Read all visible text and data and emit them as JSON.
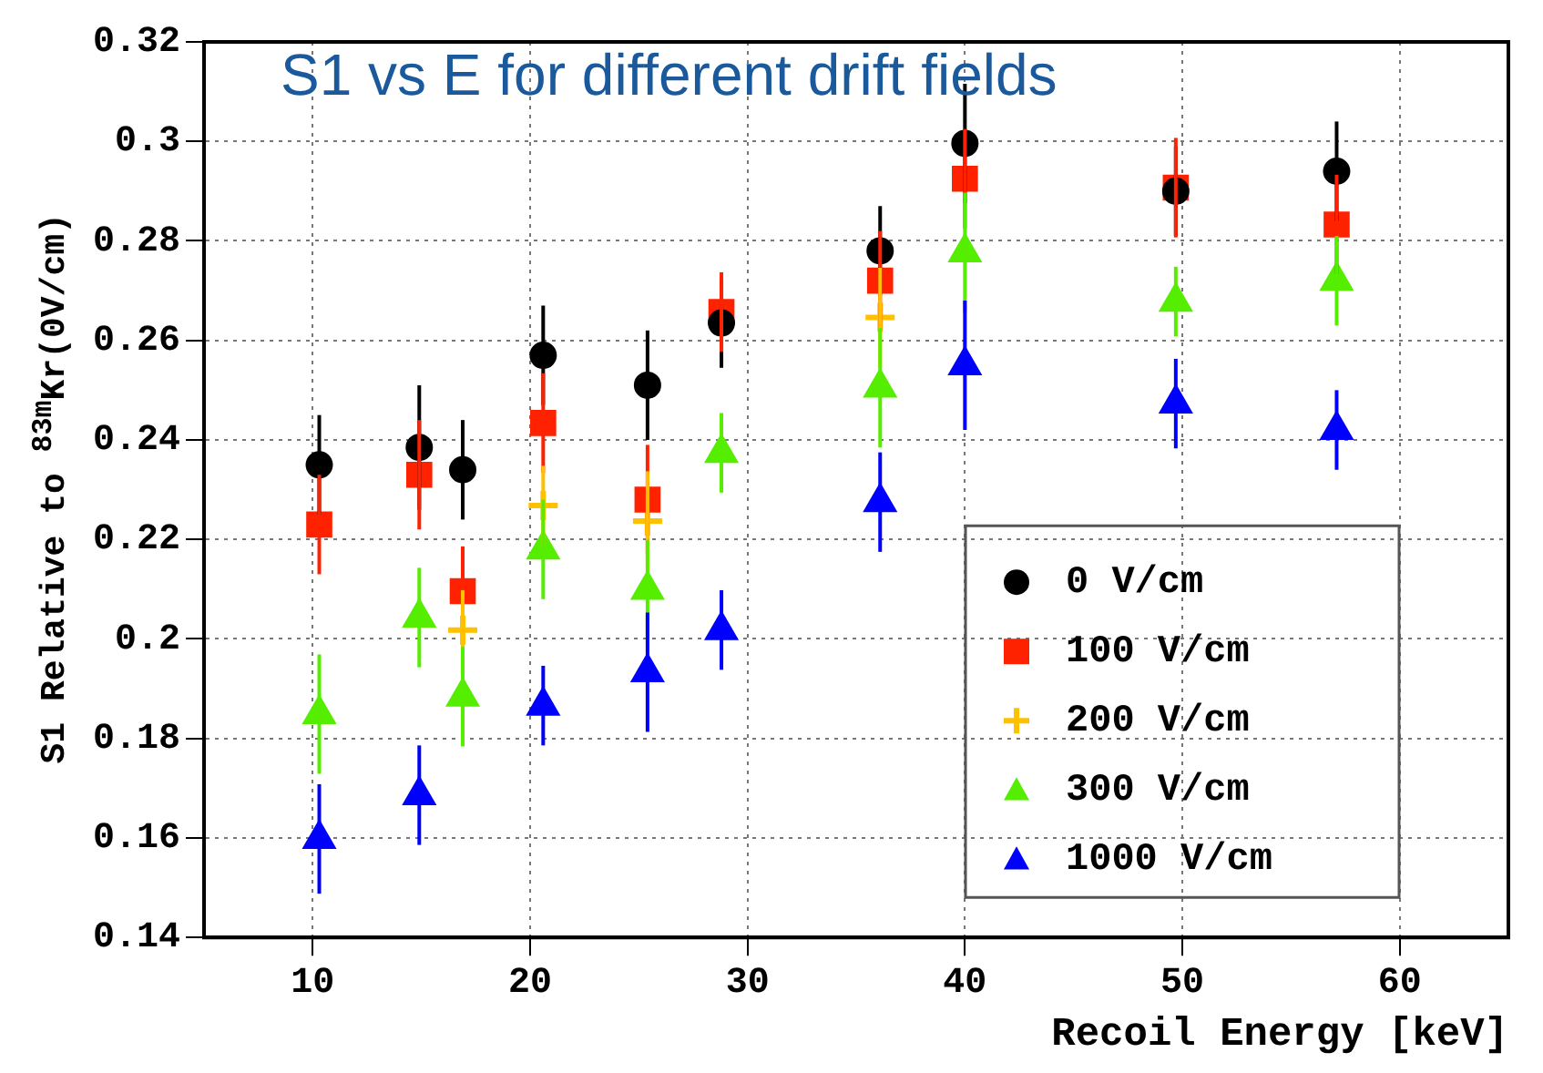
{
  "chart_data": {
    "type": "scatter",
    "title": "S1 vs E for different drift fields",
    "xlabel": "Recoil Energy [keV]",
    "ylabel": "S1 Relative to $^{83m}$Kr(0V/cm)",
    "x": [
      10.3,
      14.9,
      16.9,
      20.6,
      25.4,
      28.8,
      36.1,
      40.0,
      49.7,
      57.1
    ],
    "series": [
      {
        "name": "0 V/cm",
        "color": "#000000",
        "marker": "circle",
        "values": [
          0.235,
          0.2385,
          0.234,
          0.257,
          0.251,
          0.2635,
          0.278,
          0.2996,
          0.29,
          0.294
        ],
        "errors": [
          0.01,
          0.0125,
          0.01,
          0.01,
          0.011,
          0.009,
          0.009,
          0.012,
          0.009,
          0.01
        ]
      },
      {
        "name": "100 V/cm",
        "color": "#ff2200",
        "marker": "square",
        "values": [
          0.223,
          0.233,
          0.2096,
          0.2434,
          0.228,
          0.2657,
          0.272,
          0.2925,
          0.2907,
          0.2833
        ],
        "errors": [
          0.01,
          0.011,
          0.009,
          0.01,
          0.011,
          0.008,
          0.01,
          0.01,
          0.01,
          0.01
        ]
      },
      {
        "name": "200 V/cm",
        "color": "#ffc000",
        "marker": "cross",
        "values": [
          null,
          null,
          0.2018,
          0.2268,
          0.2237,
          null,
          0.2646,
          null,
          null,
          null
        ],
        "errors": [
          null,
          null,
          0.008,
          0.008,
          0.01,
          null,
          0.01,
          null,
          null,
          null
        ]
      },
      {
        "name": "300 V/cm",
        "color": "#55ee00",
        "marker": "triangle",
        "values": [
          0.1849,
          0.2043,
          0.1884,
          0.218,
          0.2099,
          0.2374,
          0.2505,
          0.2777,
          0.2678,
          0.272
        ],
        "errors": [
          0.012,
          0.01,
          0.01,
          0.01,
          0.01,
          0.008,
          0.012,
          0.012,
          0.007,
          0.009
        ]
      },
      {
        "name": "1000 V/cm",
        "color": "#0000ff",
        "marker": "triangle",
        "values": [
          0.1598,
          0.1686,
          null,
          0.1866,
          0.1933,
          0.2018,
          0.2275,
          0.255,
          0.2473,
          0.242
        ],
        "errors": [
          0.011,
          0.01,
          null,
          0.008,
          0.012,
          0.008,
          0.01,
          0.013,
          0.009,
          0.008
        ]
      }
    ],
    "xlim": [
      5,
      65
    ],
    "xticks": [
      10,
      20,
      30,
      40,
      50,
      60
    ],
    "ylim": [
      0.14,
      0.32
    ],
    "yticks": [
      0.14,
      0.16,
      0.18,
      0.2,
      0.22,
      0.24,
      0.26,
      0.28,
      0.3,
      0.32
    ],
    "grid": true,
    "legend": "bottom right"
  }
}
